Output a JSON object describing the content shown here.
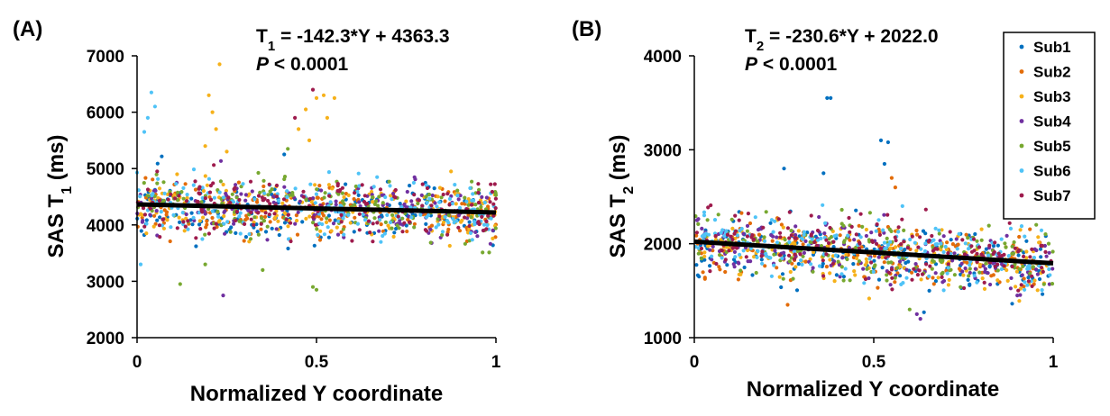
{
  "chart_data": [
    {
      "type": "scatter",
      "panel_label": "(A)",
      "xlabel": "Normalized Y coordinate",
      "ylabel": {
        "main": "SAS T",
        "sub": "1",
        "unit": " (ms)"
      },
      "xlim": [
        0,
        1
      ],
      "ylim": [
        2000,
        7000
      ],
      "xticks": [
        0,
        0.5,
        1
      ],
      "xtick_labels": [
        "0",
        "0.5",
        "1"
      ],
      "yticks": [
        2000,
        3000,
        4000,
        5000,
        6000,
        7000
      ],
      "ytick_labels": [
        "2000",
        "3000",
        "4000",
        "5000",
        "6000",
        "7000"
      ],
      "fit": {
        "slope": -142.3,
        "intercept": 4363.3
      },
      "equation": {
        "lhs": "T",
        "sub": "1",
        "rhs": " = -142.3*Y + 4363.3"
      },
      "p_value": {
        "symbol": "P",
        "text": " < 0.0001"
      },
      "cloud": {
        "center": 4350,
        "spread": 260,
        "points_per_subject": 170
      },
      "outliers": [
        {
          "series": "Sub6",
          "x": 0.04,
          "y": 6350
        },
        {
          "series": "Sub6",
          "x": 0.05,
          "y": 6100
        },
        {
          "series": "Sub6",
          "x": 0.03,
          "y": 5900
        },
        {
          "series": "Sub6",
          "x": 0.02,
          "y": 5650
        },
        {
          "series": "Sub6",
          "x": 0.01,
          "y": 3300
        },
        {
          "series": "Sub3",
          "x": 0.2,
          "y": 6300
        },
        {
          "series": "Sub3",
          "x": 0.23,
          "y": 6850
        },
        {
          "series": "Sub3",
          "x": 0.21,
          "y": 6000
        },
        {
          "series": "Sub3",
          "x": 0.22,
          "y": 5700
        },
        {
          "series": "Sub3",
          "x": 0.19,
          "y": 5400
        },
        {
          "series": "Sub3",
          "x": 0.25,
          "y": 5300
        },
        {
          "series": "Sub3",
          "x": 0.45,
          "y": 5700
        },
        {
          "series": "Sub3",
          "x": 0.47,
          "y": 6050
        },
        {
          "series": "Sub3",
          "x": 0.5,
          "y": 6250
        },
        {
          "series": "Sub3",
          "x": 0.52,
          "y": 6300
        },
        {
          "series": "Sub3",
          "x": 0.55,
          "y": 6250
        },
        {
          "series": "Sub3",
          "x": 0.53,
          "y": 5900
        },
        {
          "series": "Sub3",
          "x": 0.48,
          "y": 5500
        },
        {
          "series": "Sub7",
          "x": 0.49,
          "y": 6400
        },
        {
          "series": "Sub7",
          "x": 0.44,
          "y": 5900
        },
        {
          "series": "Sub5",
          "x": 0.42,
          "y": 5350
        },
        {
          "series": "Sub5",
          "x": 0.49,
          "y": 2900
        },
        {
          "series": "Sub5",
          "x": 0.5,
          "y": 2850
        },
        {
          "series": "Sub5",
          "x": 0.12,
          "y": 2950
        },
        {
          "series": "Sub5",
          "x": 0.19,
          "y": 3300
        },
        {
          "series": "Sub4",
          "x": 0.24,
          "y": 2750
        },
        {
          "series": "Sub5",
          "x": 0.35,
          "y": 3200
        },
        {
          "series": "Sub1",
          "x": 0.41,
          "y": 5250
        }
      ]
    },
    {
      "type": "scatter",
      "panel_label": "(B)",
      "xlabel": "Normalized Y coordinate",
      "ylabel": {
        "main": "SAS T",
        "sub": "2",
        "unit": " (ms)"
      },
      "xlim": [
        0,
        1
      ],
      "ylim": [
        1000,
        4000
      ],
      "xticks": [
        0,
        0.5,
        1
      ],
      "xtick_labels": [
        "0",
        "0.5",
        "1"
      ],
      "yticks": [
        1000,
        2000,
        3000,
        4000
      ],
      "ytick_labels": [
        "1000",
        "2000",
        "3000",
        "4000"
      ],
      "fit": {
        "slope": -230.6,
        "intercept": 2022.0
      },
      "equation": {
        "lhs": "T",
        "sub": "2",
        "rhs": " = -230.6*Y + 2022.0"
      },
      "p_value": {
        "symbol": "P",
        "text": " < 0.0001"
      },
      "cloud": {
        "center": 2000,
        "spread": 160,
        "points_per_subject": 170
      },
      "outliers": [
        {
          "series": "Sub1",
          "x": 0.37,
          "y": 3550
        },
        {
          "series": "Sub1",
          "x": 0.38,
          "y": 3550
        },
        {
          "series": "Sub1",
          "x": 0.52,
          "y": 3100
        },
        {
          "series": "Sub1",
          "x": 0.54,
          "y": 3080
        },
        {
          "series": "Sub1",
          "x": 0.53,
          "y": 2850
        },
        {
          "series": "Sub1",
          "x": 0.36,
          "y": 2750
        },
        {
          "series": "Sub1",
          "x": 0.25,
          "y": 2800
        },
        {
          "series": "Sub2",
          "x": 0.56,
          "y": 2600
        },
        {
          "series": "Sub2",
          "x": 0.55,
          "y": 2700
        },
        {
          "series": "Sub6",
          "x": 0.58,
          "y": 2400
        },
        {
          "series": "Sub4",
          "x": 0.62,
          "y": 1250
        },
        {
          "series": "Sub4",
          "x": 0.63,
          "y": 1200
        },
        {
          "series": "Sub2",
          "x": 0.26,
          "y": 1350
        },
        {
          "series": "Sub5",
          "x": 0.6,
          "y": 1300
        },
        {
          "series": "Sub1",
          "x": 0.64,
          "y": 1270
        },
        {
          "series": "Sub4",
          "x": 0.9,
          "y": 1450
        }
      ]
    }
  ],
  "legend": {
    "placement": "top-right",
    "entries": [
      {
        "name": "Sub1",
        "color": "#0070C0"
      },
      {
        "name": "Sub2",
        "color": "#E36C09"
      },
      {
        "name": "Sub3",
        "color": "#F6B11A"
      },
      {
        "name": "Sub4",
        "color": "#7030A0"
      },
      {
        "name": "Sub5",
        "color": "#77A830"
      },
      {
        "name": "Sub6",
        "color": "#4FC3F7"
      },
      {
        "name": "Sub7",
        "color": "#9E1B4D"
      }
    ]
  },
  "fit_line_color": "#000000"
}
